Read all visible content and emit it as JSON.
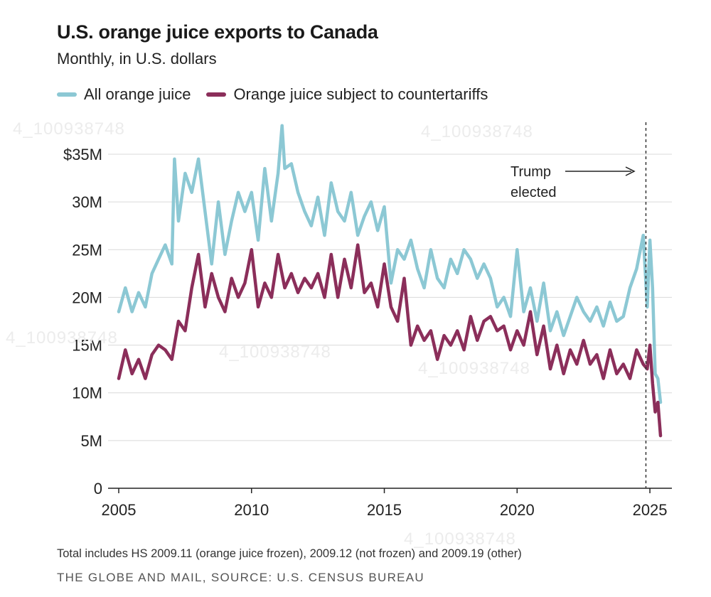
{
  "header": {
    "title": "U.S. orange juice exports to Canada",
    "subtitle": "Monthly, in U.S. dollars"
  },
  "legend": [
    {
      "label": "All orange juice",
      "color": "#8cc8d4"
    },
    {
      "label": "Orange juice subject to countertariffs",
      "color": "#8b2e5a"
    }
  ],
  "footer": {
    "note": "Total includes HS 2009.11 (orange juice frozen), 2009.12 (not frozen) and 2009.19 (other)",
    "source": "THE GLOBE AND MAIL, SOURCE: U.S. CENSUS BUREAU"
  },
  "watermark_text": "4_100938748",
  "chart_data": {
    "type": "line",
    "x_unit": "year",
    "xlim": [
      2005,
      2025.4
    ],
    "ylim": [
      0,
      35
    ],
    "y_unit": "millions of U.S. dollars",
    "x_ticks": [
      2005,
      2010,
      2015,
      2020,
      2025
    ],
    "x_tick_labels": [
      "2005",
      "2010",
      "2015",
      "2020",
      "2025"
    ],
    "y_ticks": [
      0,
      5,
      10,
      15,
      20,
      25,
      30,
      35
    ],
    "y_tick_labels": [
      "0",
      "5M",
      "10M",
      "15M",
      "20M",
      "25M",
      "30M",
      "$35M"
    ],
    "grid": "horizontal",
    "legend_position": "top-left",
    "annotation": {
      "text_line1": "Trump",
      "text_line2": "elected",
      "x": 2024.85
    },
    "series": [
      {
        "name": "All orange juice",
        "color": "#8cc8d4",
        "x": [
          2005.0,
          2005.25,
          2005.5,
          2005.75,
          2006.0,
          2006.25,
          2006.5,
          2006.75,
          2007.0,
          2007.1,
          2007.25,
          2007.5,
          2007.75,
          2008.0,
          2008.25,
          2008.5,
          2008.75,
          2009.0,
          2009.25,
          2009.5,
          2009.75,
          2010.0,
          2010.25,
          2010.5,
          2010.75,
          2011.0,
          2011.15,
          2011.25,
          2011.5,
          2011.75,
          2012.0,
          2012.25,
          2012.5,
          2012.75,
          2013.0,
          2013.25,
          2013.5,
          2013.75,
          2014.0,
          2014.25,
          2014.5,
          2014.75,
          2015.0,
          2015.25,
          2015.5,
          2015.75,
          2016.0,
          2016.25,
          2016.5,
          2016.75,
          2017.0,
          2017.25,
          2017.5,
          2017.75,
          2018.0,
          2018.25,
          2018.5,
          2018.75,
          2019.0,
          2019.25,
          2019.5,
          2019.75,
          2020.0,
          2020.25,
          2020.5,
          2020.75,
          2021.0,
          2021.25,
          2021.5,
          2021.75,
          2022.0,
          2022.25,
          2022.5,
          2022.75,
          2023.0,
          2023.25,
          2023.5,
          2023.75,
          2024.0,
          2024.25,
          2024.5,
          2024.75,
          2024.9,
          2025.0,
          2025.1,
          2025.2,
          2025.3,
          2025.4
        ],
        "y": [
          18.5,
          21,
          18.5,
          20.5,
          19,
          22.5,
          24,
          25.5,
          23.5,
          34.5,
          28,
          33,
          31,
          34.5,
          29,
          23.5,
          30,
          24.5,
          28,
          31,
          29,
          31,
          26,
          33.5,
          28,
          33,
          38,
          33.5,
          34,
          31,
          29,
          27.5,
          30.5,
          26.5,
          32,
          29,
          28,
          31,
          26.5,
          28.5,
          30,
          27,
          29.5,
          21.5,
          25,
          24,
          26,
          23,
          21,
          25,
          22,
          21,
          24,
          22.5,
          25,
          24,
          22,
          23.5,
          22,
          19,
          20,
          18,
          25,
          18.5,
          21,
          17.5,
          21.5,
          16.5,
          18.5,
          16,
          18,
          20,
          18.5,
          17.5,
          19,
          17,
          19.5,
          17.5,
          18,
          21,
          23,
          26.5,
          19,
          26,
          21,
          12,
          11.5,
          9
        ]
      },
      {
        "name": "Orange juice subject to countertariffs",
        "color": "#8b2e5a",
        "x": [
          2005.0,
          2005.25,
          2005.5,
          2005.75,
          2006.0,
          2006.25,
          2006.5,
          2006.75,
          2007.0,
          2007.25,
          2007.5,
          2007.75,
          2008.0,
          2008.25,
          2008.5,
          2008.75,
          2009.0,
          2009.25,
          2009.5,
          2009.75,
          2010.0,
          2010.25,
          2010.5,
          2010.75,
          2011.0,
          2011.25,
          2011.5,
          2011.75,
          2012.0,
          2012.25,
          2012.5,
          2012.75,
          2013.0,
          2013.25,
          2013.5,
          2013.75,
          2014.0,
          2014.25,
          2014.5,
          2014.75,
          2015.0,
          2015.25,
          2015.5,
          2015.75,
          2016.0,
          2016.25,
          2016.5,
          2016.75,
          2017.0,
          2017.25,
          2017.5,
          2017.75,
          2018.0,
          2018.25,
          2018.5,
          2018.75,
          2019.0,
          2019.25,
          2019.5,
          2019.75,
          2020.0,
          2020.25,
          2020.5,
          2020.75,
          2021.0,
          2021.25,
          2021.5,
          2021.75,
          2022.0,
          2022.25,
          2022.5,
          2022.75,
          2023.0,
          2023.25,
          2023.5,
          2023.75,
          2024.0,
          2024.25,
          2024.5,
          2024.75,
          2024.9,
          2025.0,
          2025.1,
          2025.2,
          2025.3,
          2025.4
        ],
        "y": [
          11.5,
          14.5,
          12,
          13.5,
          11.5,
          14,
          15,
          14.5,
          13.5,
          17.5,
          16.5,
          21,
          24.5,
          19,
          22.5,
          20,
          18.5,
          22,
          20,
          21.5,
          25,
          19,
          21.5,
          20,
          24.5,
          21,
          22.5,
          20.5,
          22,
          21,
          22.5,
          20,
          24.5,
          20,
          24,
          21,
          25.5,
          20.5,
          21.5,
          19,
          23.5,
          19,
          17.5,
          22,
          15,
          17,
          15.5,
          16.5,
          13.5,
          16,
          15,
          16.5,
          14.5,
          18,
          15.5,
          17.5,
          18,
          16.5,
          17,
          14.5,
          16.5,
          15,
          18.5,
          14,
          17,
          12.5,
          15,
          12,
          14.5,
          13,
          15.5,
          13,
          14,
          11.5,
          14.5,
          12,
          13,
          11.5,
          14.5,
          13,
          12.5,
          15,
          11,
          8,
          9,
          5.5
        ]
      }
    ]
  }
}
